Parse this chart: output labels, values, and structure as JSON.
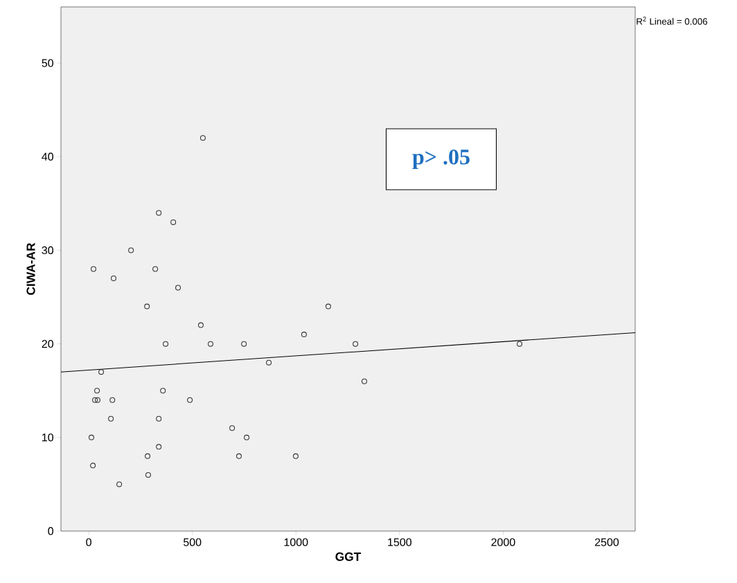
{
  "chart_data": {
    "type": "scatter",
    "xlabel": "GGT",
    "ylabel": "CIWA-AR",
    "xlim": [
      -134,
      2637
    ],
    "ylim": [
      0,
      56
    ],
    "xticks": [
      0,
      500,
      1000,
      1500,
      2000,
      2500
    ],
    "yticks": [
      0,
      10,
      20,
      30,
      40,
      50
    ],
    "grid": false,
    "annotations": [
      "R$^{2}$ Lineal = 0.006",
      "p> .05"
    ],
    "series": [
      {
        "marker": "circle",
        "color": "#333333",
        "x": [
          551,
          338,
          408,
          204,
          23,
          321,
          120,
          431,
          281,
          1156,
          541,
          1039,
          371,
          588,
          749,
          1287,
          2079,
          869,
          60,
          1330,
          40,
          358,
          30,
          43,
          114,
          488,
          107,
          338,
          692,
          13,
          762,
          284,
          725,
          999,
          338,
          20,
          287,
          147
        ],
        "values": [
          42,
          34,
          33,
          30,
          28,
          28,
          27,
          26,
          24,
          24,
          22,
          21,
          20,
          20,
          20,
          20,
          20,
          18,
          17,
          16,
          15,
          15,
          14,
          14,
          14,
          14,
          12,
          12,
          11,
          10,
          10,
          8,
          8,
          8,
          9,
          7,
          6,
          5
        ]
      },
      {
        "type": "line",
        "marker": "none",
        "color": "#000000",
        "x": [
          -134,
          2637
        ],
        "values": [
          17.0,
          21.2
        ]
      }
    ]
  }
}
